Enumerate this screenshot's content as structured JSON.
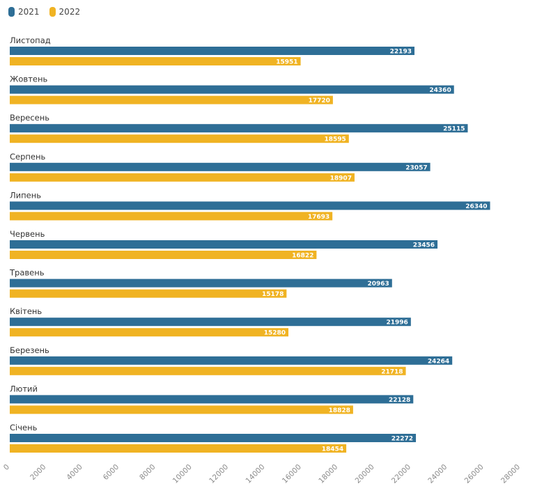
{
  "chart_data": {
    "type": "bar",
    "orientation": "horizontal",
    "categories": [
      "Листопад",
      "Жовтень",
      "Вересень",
      "Серпень",
      "Липень",
      "Червень",
      "Травень",
      "Квітень",
      "Березень",
      "Лютий",
      "Січень"
    ],
    "series": [
      {
        "name": "2021",
        "color": "#2e6e96",
        "values": [
          22193,
          24360,
          25115,
          23057,
          26340,
          23456,
          20963,
          21996,
          24264,
          22128,
          22272
        ]
      },
      {
        "name": "2022",
        "color": "#f0b323",
        "values": [
          15951,
          17720,
          18595,
          18907,
          17693,
          16822,
          15178,
          15280,
          21718,
          18828,
          18454
        ]
      }
    ],
    "xlim": [
      0,
      28000
    ],
    "xticks": [
      "0",
      "2000",
      "4000",
      "6000",
      "8000",
      "10000",
      "12000",
      "14000",
      "16000",
      "18000",
      "20000",
      "22000",
      "24000",
      "26000",
      "28000"
    ],
    "legend_position": "top-left",
    "grid": false
  }
}
